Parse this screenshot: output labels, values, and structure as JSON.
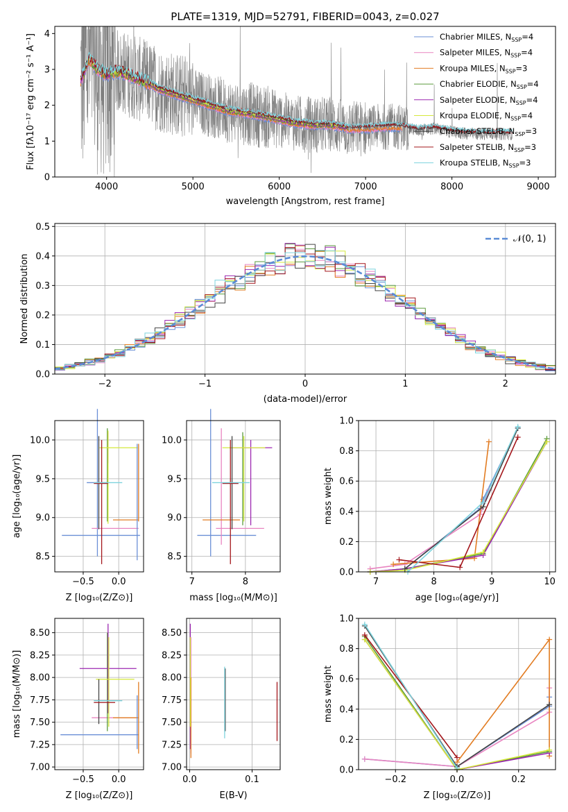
{
  "colors": {
    "chabrier_miles": "#6a8fd6",
    "salpeter_miles": "#e884c0",
    "kroupa_miles": "#e27c22",
    "chabrier_elodie": "#5a9a3c",
    "salpeter_elodie": "#9c27b0",
    "kroupa_elodie": "#d4e83a",
    "chabrier_stelib": "#444444",
    "salpeter_stelib": "#a3161b",
    "kroupa_stelib": "#7dd3dd",
    "spectrum": "#7f7f7f",
    "gaussian": "#5a8bd6",
    "grid": "#b0b0b0"
  },
  "chart_data": [
    {
      "id": "spectrum",
      "type": "line",
      "title": "PLATE=1319, MJD=52791, FIBERID=0043, z=0.027",
      "xlabel": "wavelength [Angstrom, rest frame]",
      "ylabel": "Flux [f$_\\lambda$10$^{-17}$ erg cm$^{-2}$ s$^{-1}$ A$^{-1}$]",
      "xlim": [
        3400,
        9200
      ],
      "ylim": [
        0,
        4.2
      ],
      "xticks": [
        4000,
        5000,
        6000,
        7000,
        8000,
        9000
      ],
      "yticks": [
        0,
        1,
        2,
        3,
        4
      ],
      "grid": false,
      "legend_position": "top-right",
      "legend": [
        {
          "key": "chabrier_miles",
          "name": "Chabrier MILES, N",
          "sub": "SSP",
          "suffix": "=4"
        },
        {
          "key": "salpeter_miles",
          "name": "Salpeter MILES, N",
          "sub": "SSP",
          "suffix": "=4"
        },
        {
          "key": "kroupa_miles",
          "name": "Kroupa MILES, N",
          "sub": "SSP",
          "suffix": "=3"
        },
        {
          "key": "chabrier_elodie",
          "name": "Chabrier ELODIE, N",
          "sub": "SSP",
          "suffix": "=4"
        },
        {
          "key": "salpeter_elodie",
          "name": "Salpeter ELODIE, N",
          "sub": "SSP",
          "suffix": "=4"
        },
        {
          "key": "kroupa_elodie",
          "name": "Kroupa ELODIE, N",
          "sub": "SSP",
          "suffix": "=4"
        },
        {
          "key": "chabrier_stelib",
          "name": "Chabrier STELIB, N",
          "sub": "SSP",
          "suffix": "=3"
        },
        {
          "key": "salpeter_stelib",
          "name": "Salpeter STELIB, N",
          "sub": "SSP",
          "suffix": "=3"
        },
        {
          "key": "kroupa_stelib",
          "name": "Kroupa STELIB, N",
          "sub": "SSP",
          "suffix": "=3"
        }
      ],
      "model_continuum": {
        "x": [
          3700,
          3800,
          3900,
          4000,
          4100,
          4200,
          4300,
          4400,
          4500,
          4600,
          4800,
          5000,
          5200,
          5400,
          5600,
          5800,
          6000,
          6200,
          6400,
          6600,
          6800,
          7000,
          7200,
          7400,
          7600,
          7800,
          8000,
          8200,
          8400,
          8600,
          8700
        ],
        "y": [
          2.7,
          3.3,
          3.0,
          2.85,
          2.95,
          2.9,
          2.8,
          2.7,
          2.6,
          2.45,
          2.3,
          2.15,
          2.0,
          1.85,
          1.78,
          1.7,
          1.6,
          1.5,
          1.45,
          1.45,
          1.35,
          1.35,
          1.4,
          1.4,
          1.3,
          1.35,
          1.25,
          1.2,
          1.2,
          1.2,
          1.2
        ],
        "model_ranges": {
          "miles": [
            3700,
            7420
          ],
          "elodie": [
            3700,
            6800
          ],
          "stelib": [
            3700,
            8700
          ]
        }
      }
    },
    {
      "id": "residuals",
      "type": "line",
      "xlabel": "(data-model)/error",
      "ylabel": "Normed distribution",
      "xlim": [
        -2.5,
        2.5
      ],
      "ylim": [
        0,
        0.51
      ],
      "xticks": [
        -2,
        -1,
        0,
        1,
        2
      ],
      "xtick_labels": [
        "−2",
        "−1",
        "0",
        "1",
        "2"
      ],
      "yticks": [
        0.0,
        0.1,
        0.2,
        0.3,
        0.4,
        0.5
      ],
      "ytick_labels": [
        "0.0",
        "0.1",
        "0.2",
        "0.3",
        "0.4",
        "0.5"
      ],
      "grid": true,
      "legend_position": "top-right",
      "gaussian_label": "𝒩(0, 1)",
      "bin_width": 0.1,
      "bin_start": -2.5
    },
    {
      "id": "age_vs_z",
      "type": "scatter",
      "xlabel": "Z [log₁₀(Z/Z⊙)]",
      "ylabel": "age  [log₁₀(age/yr)]",
      "xlim": [
        -0.9,
        0.35
      ],
      "ylim": [
        8.3,
        10.25
      ],
      "xticks": [
        -0.5,
        0.0
      ],
      "xtick_labels": [
        "−0.5",
        "0.0"
      ],
      "yticks": [
        8.5,
        9.0,
        9.5,
        10.0
      ],
      "ytick_labels": [
        "8.5",
        "9.0",
        "9.5",
        "10.0"
      ],
      "grid": true,
      "errorbars": [
        {
          "key": "chabrier_miles",
          "x": -0.3,
          "y": 9.45,
          "xerr": 0.15,
          "yerr": 0.95
        },
        {
          "key": "chabrier_miles",
          "x": -0.25,
          "y": 8.77,
          "xerr": 0.55,
          "yerr": 0.0
        },
        {
          "key": "salpeter_miles",
          "x": -0.05,
          "y": 8.86,
          "xerr": 0.33,
          "yerr": 0.0
        },
        {
          "key": "kroupa_miles",
          "x": 0.28,
          "y": 9.45,
          "xerr": 0.0,
          "yerr": 0.5
        },
        {
          "key": "kroupa_miles",
          "x": 0.1,
          "y": 8.97,
          "xerr": 0.18,
          "yerr": 0.0
        },
        {
          "key": "chabrier_elodie",
          "x": -0.16,
          "y": 9.55,
          "xerr": 0.0,
          "yerr": 0.6
        },
        {
          "key": "salpeter_elodie",
          "x": -0.15,
          "y": 9.9,
          "xerr": 0.0,
          "yerr": 0.2
        },
        {
          "key": "kroupa_elodie",
          "x": 0.0,
          "y": 9.9,
          "xerr": 0.27,
          "yerr": 0.0
        },
        {
          "key": "kroupa_elodie",
          "x": -0.15,
          "y": 9.52,
          "xerr": 0.0,
          "yerr": 0.6
        },
        {
          "key": "chabrier_stelib",
          "x": -0.28,
          "y": 9.45,
          "xerr": 0.0,
          "yerr": 0.6
        },
        {
          "key": "salpeter_stelib",
          "x": -0.25,
          "y": 9.44,
          "xerr": 0.1,
          "yerr": 0.0
        },
        {
          "key": "salpeter_stelib",
          "x": -0.24,
          "y": 9.2,
          "xerr": 0.0,
          "yerr": 0.8
        },
        {
          "key": "kroupa_stelib",
          "x": -0.15,
          "y": 9.45,
          "xerr": 0.2,
          "yerr": 0.0
        },
        {
          "key": "chabrier_miles",
          "x": 0.26,
          "y": 9.2,
          "xerr": 0.0,
          "yerr": 0.75
        }
      ]
    },
    {
      "id": "age_vs_mass",
      "type": "scatter",
      "xlabel": "mass [log₁₀(M/M⊙)]",
      "xlim": [
        6.9,
        8.65
      ],
      "ylim": [
        8.3,
        10.25
      ],
      "xticks": [
        7,
        8
      ],
      "xtick_labels": [
        "7",
        "8"
      ],
      "yticks": [
        8.5,
        9.0,
        9.5,
        10.0
      ],
      "ytick_labels": [
        "8.5",
        "9.0",
        "9.5",
        "10.0"
      ],
      "grid": true,
      "errorbars": [
        {
          "key": "chabrier_miles",
          "x": 7.35,
          "y": 9.45,
          "xerr": 0.0,
          "yerr": 0.95
        },
        {
          "key": "chabrier_miles",
          "x": 7.65,
          "y": 8.77,
          "xerr": 0.55,
          "yerr": 0.0
        },
        {
          "key": "salpeter_miles",
          "x": 7.9,
          "y": 8.86,
          "xerr": 0.45,
          "yerr": 0.0
        },
        {
          "key": "salpeter_miles",
          "x": 7.55,
          "y": 9.4,
          "xerr": 0.0,
          "yerr": 0.75
        },
        {
          "key": "kroupa_miles",
          "x": 7.55,
          "y": 8.97,
          "xerr": 0.35,
          "yerr": 0.0
        },
        {
          "key": "chabrier_elodie",
          "x": 7.95,
          "y": 9.5,
          "xerr": 0.0,
          "yerr": 0.6
        },
        {
          "key": "salpeter_elodie",
          "x": 8.1,
          "y": 9.9,
          "xerr": 0.4,
          "yerr": 0.0
        },
        {
          "key": "salpeter_elodie",
          "x": 8.1,
          "y": 9.45,
          "xerr": 0.0,
          "yerr": 0.55
        },
        {
          "key": "kroupa_elodie",
          "x": 7.97,
          "y": 9.9,
          "xerr": 0.4,
          "yerr": 0.0
        },
        {
          "key": "kroupa_elodie",
          "x": 7.97,
          "y": 9.5,
          "xerr": 0.0,
          "yerr": 0.55
        },
        {
          "key": "chabrier_stelib",
          "x": 7.75,
          "y": 9.45,
          "xerr": 0.0,
          "yerr": 0.6
        },
        {
          "key": "salpeter_stelib",
          "x": 7.72,
          "y": 9.44,
          "xerr": 0.15,
          "yerr": 0.0
        },
        {
          "key": "salpeter_stelib",
          "x": 7.72,
          "y": 9.2,
          "xerr": 0.0,
          "yerr": 0.8
        },
        {
          "key": "kroupa_stelib",
          "x": 7.73,
          "y": 9.45,
          "xerr": 0.35,
          "yerr": 0.0
        }
      ]
    },
    {
      "id": "weight_vs_age",
      "type": "line",
      "xlabel": "age  [log₁₀(age/yr)]",
      "ylabel": "mass weight",
      "xlim": [
        6.7,
        10.1
      ],
      "ylim": [
        0,
        1.0
      ],
      "xticks": [
        7,
        8,
        9,
        10
      ],
      "xtick_labels": [
        "7",
        "8",
        "9",
        "10"
      ],
      "yticks": [
        0,
        0.2,
        0.4,
        0.6,
        0.8,
        1.0
      ],
      "ytick_labels": [
        "0.0",
        "0.2",
        "0.4",
        "0.6",
        "0.8",
        "1.0"
      ],
      "grid": true,
      "series": [
        {
          "key": "chabrier_miles",
          "x": [
            7.5,
            8.8,
            8.85,
            9.45
          ],
          "y": [
            0.02,
            0.42,
            0.48,
            0.95
          ]
        },
        {
          "key": "salpeter_miles",
          "x": [
            6.9,
            7.5,
            8.8,
            8.95
          ],
          "y": [
            0.02,
            0.05,
            0.38,
            0.54
          ]
        },
        {
          "key": "kroupa_miles",
          "x": [
            7.3,
            8.7,
            8.95
          ],
          "y": [
            0.05,
            0.09,
            0.86
          ]
        },
        {
          "key": "chabrier_elodie",
          "x": [
            6.9,
            7.5,
            8.85,
            9.95
          ],
          "y": [
            0.0,
            0.02,
            0.12,
            0.88
          ]
        },
        {
          "key": "salpeter_elodie",
          "x": [
            6.9,
            7.5,
            8.85,
            9.95
          ],
          "y": [
            0.0,
            0.02,
            0.11,
            0.86
          ]
        },
        {
          "key": "kroupa_elodie",
          "x": [
            6.9,
            7.5,
            8.85,
            9.95
          ],
          "y": [
            0.0,
            0.01,
            0.13,
            0.86
          ]
        },
        {
          "key": "chabrier_stelib",
          "x": [
            7.5,
            8.85,
            9.45
          ],
          "y": [
            0.02,
            0.43,
            0.95
          ]
        },
        {
          "key": "salpeter_stelib",
          "x": [
            7.4,
            8.45,
            9.45
          ],
          "y": [
            0.08,
            0.03,
            0.89
          ]
        },
        {
          "key": "kroupa_stelib",
          "x": [
            7.55,
            8.85,
            9.45
          ],
          "y": [
            0.0,
            0.46,
            0.96
          ]
        }
      ]
    },
    {
      "id": "mass_vs_z",
      "type": "scatter",
      "xlabel": "Z [log₁₀(Z/Z⊙)]",
      "ylabel": "mass [log₁₀(M/M⊙)]",
      "xlim": [
        -0.9,
        0.35
      ],
      "ylim": [
        6.97,
        8.66
      ],
      "xticks": [
        -0.5,
        0.0
      ],
      "xtick_labels": [
        "−0.5",
        "0.0"
      ],
      "yticks": [
        7.0,
        7.25,
        7.5,
        7.75,
        8.0,
        8.25,
        8.5
      ],
      "ytick_labels": [
        "7.00",
        "7.25",
        "7.50",
        "7.75",
        "8.00",
        "8.25",
        "8.50"
      ],
      "grid": true,
      "errorbars": [
        {
          "key": "chabrier_miles",
          "x": -0.27,
          "y": 7.36,
          "xerr": 0.55,
          "yerr": 0.0
        },
        {
          "key": "salpeter_miles",
          "x": -0.05,
          "y": 7.55,
          "xerr": 0.33,
          "yerr": 0.0
        },
        {
          "key": "kroupa_miles",
          "x": 0.28,
          "y": 7.55,
          "xerr": 0.0,
          "yerr": 0.4
        },
        {
          "key": "kroupa_miles",
          "x": 0.1,
          "y": 7.55,
          "xerr": 0.18,
          "yerr": 0.0
        },
        {
          "key": "chabrier_elodie",
          "x": -0.16,
          "y": 7.95,
          "xerr": 0.0,
          "yerr": 0.55
        },
        {
          "key": "salpeter_elodie",
          "x": -0.15,
          "y": 8.1,
          "xerr": 0.4,
          "yerr": 0.0
        },
        {
          "key": "salpeter_elodie",
          "x": -0.15,
          "y": 8.1,
          "xerr": 0.0,
          "yerr": 0.5
        },
        {
          "key": "kroupa_elodie",
          "x": -0.05,
          "y": 7.98,
          "xerr": 0.27,
          "yerr": 0.0
        },
        {
          "key": "kroupa_elodie",
          "x": -0.14,
          "y": 7.95,
          "xerr": 0.0,
          "yerr": 0.5
        },
        {
          "key": "chabrier_stelib",
          "x": -0.28,
          "y": 7.73,
          "xerr": 0.0,
          "yerr": 0.25
        },
        {
          "key": "salpeter_stelib",
          "x": -0.2,
          "y": 7.72,
          "xerr": 0.15,
          "yerr": 0.0
        },
        {
          "key": "kroupa_stelib",
          "x": -0.15,
          "y": 7.74,
          "xerr": 0.2,
          "yerr": 0.0
        },
        {
          "key": "chabrier_miles",
          "x": 0.26,
          "y": 7.5,
          "xerr": 0.0,
          "yerr": 0.3
        }
      ]
    },
    {
      "id": "mass_vs_ebv",
      "type": "scatter",
      "xlabel": "E(B-V)",
      "xlim": [
        -0.005,
        0.145
      ],
      "ylim": [
        6.97,
        8.66
      ],
      "xticks": [
        0.0,
        0.1
      ],
      "xtick_labels": [
        "0.0",
        "0.1"
      ],
      "yticks": [
        7.0,
        7.25,
        7.5,
        7.75,
        8.0,
        8.25,
        8.5
      ],
      "ytick_labels": [
        "7.00",
        "7.25",
        "7.50",
        "7.75",
        "8.00",
        "8.25",
        "8.50"
      ],
      "grid": true,
      "errorbars": [
        {
          "key": "salpeter_elodie",
          "x": 0.001,
          "y": 7.9,
          "xerr": 0.0,
          "yerr": 0.7
        },
        {
          "key": "salpeter_miles",
          "x": 0.002,
          "y": 7.8,
          "xerr": 0.0,
          "yerr": 0.65
        },
        {
          "key": "kroupa_miles",
          "x": 0.002,
          "y": 7.55,
          "xerr": 0.0,
          "yerr": 0.45
        },
        {
          "key": "kroupa_elodie",
          "x": 0.001,
          "y": 7.95,
          "xerr": 0.0,
          "yerr": 0.5
        },
        {
          "key": "chabrier_stelib",
          "x": 0.057,
          "y": 7.75,
          "xerr": 0.0,
          "yerr": 0.35
        },
        {
          "key": "kroupa_stelib",
          "x": 0.056,
          "y": 7.72,
          "xerr": 0.0,
          "yerr": 0.4
        },
        {
          "key": "salpeter_stelib",
          "x": 0.14,
          "y": 7.62,
          "xerr": 0.0,
          "yerr": 0.33
        }
      ]
    },
    {
      "id": "weight_vs_z",
      "type": "line",
      "xlabel": "Z [log₁₀(Z/Z⊙)]",
      "ylabel": "mass weight",
      "xlim": [
        -0.32,
        0.32
      ],
      "ylim": [
        0,
        1.0
      ],
      "xticks": [
        -0.2,
        0.0,
        0.2
      ],
      "xtick_labels": [
        "−0.2",
        "0.0",
        "0.2"
      ],
      "yticks": [
        0,
        0.2,
        0.4,
        0.6,
        0.8,
        1.0
      ],
      "ytick_labels": [
        "0.0",
        "0.2",
        "0.4",
        "0.6",
        "0.8",
        "1.0"
      ],
      "grid": true,
      "series": [
        {
          "key": "chabrier_miles",
          "x": [
            -0.3,
            0.0,
            0.3,
            0.3
          ],
          "y": [
            0.07,
            0.02,
            0.42,
            0.48
          ]
        },
        {
          "key": "salpeter_miles",
          "x": [
            -0.3,
            0.0,
            0.3,
            0.3
          ],
          "y": [
            0.07,
            0.02,
            0.38,
            0.54
          ]
        },
        {
          "key": "kroupa_miles",
          "x": [
            0.0,
            0.3,
            0.3
          ],
          "y": [
            0.05,
            0.86,
            0.09
          ]
        },
        {
          "key": "chabrier_elodie",
          "x": [
            -0.3,
            0.0,
            0.3
          ],
          "y": [
            0.88,
            0.0,
            0.12
          ]
        },
        {
          "key": "salpeter_elodie",
          "x": [
            -0.3,
            0.0,
            0.3
          ],
          "y": [
            0.86,
            0.0,
            0.11
          ]
        },
        {
          "key": "kroupa_elodie",
          "x": [
            -0.3,
            0.0,
            0.3
          ],
          "y": [
            0.86,
            0.0,
            0.13
          ]
        },
        {
          "key": "chabrier_stelib",
          "x": [
            -0.3,
            0.0,
            0.3
          ],
          "y": [
            0.95,
            0.02,
            0.43
          ]
        },
        {
          "key": "salpeter_stelib",
          "x": [
            -0.3,
            0.0
          ],
          "y": [
            0.89,
            0.08
          ]
        },
        {
          "key": "kroupa_stelib",
          "x": [
            -0.3,
            0.0
          ],
          "y": [
            0.96,
            0.01
          ]
        }
      ]
    }
  ]
}
